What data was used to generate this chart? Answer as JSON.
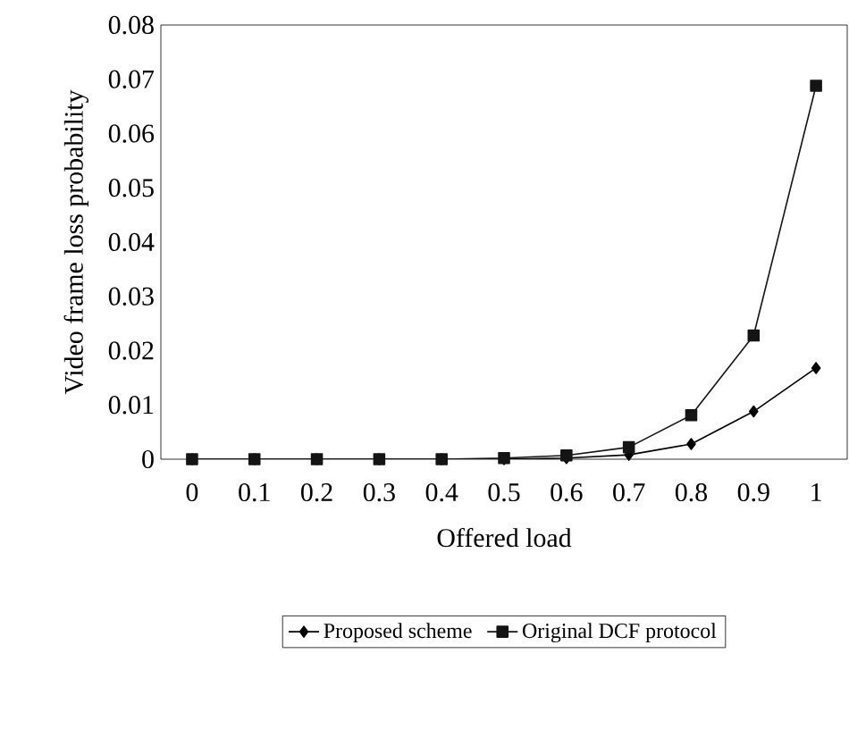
{
  "chart_data": {
    "type": "line",
    "xlabel": "Offered load",
    "ylabel": "Video frame loss probability",
    "categories": [
      "0",
      "0.1",
      "0.2",
      "0.3",
      "0.4",
      "0.5",
      "0.6",
      "0.7",
      "0.8",
      "0.9",
      "1"
    ],
    "series": [
      {
        "name": "Proposed scheme",
        "color": "#000000",
        "marker": "diamond",
        "values": [
          0,
          0,
          0,
          0,
          0,
          0,
          0.0002,
          0.0008,
          0.0028,
          0.0088,
          0.0168
        ]
      },
      {
        "name": "Original DCF protocol",
        "color": "#141414",
        "marker": "square",
        "values": [
          0,
          0,
          0,
          0,
          0,
          0.0002,
          0.0007,
          0.0022,
          0.0081,
          0.0228,
          0.0688
        ]
      }
    ],
    "ylim": [
      0,
      0.08
    ],
    "yticks": [
      0,
      0.01,
      0.02,
      0.03,
      0.04,
      0.05,
      0.06,
      0.07,
      0.08
    ],
    "grid": false,
    "legend": "bottom",
    "line_style": "solid"
  }
}
